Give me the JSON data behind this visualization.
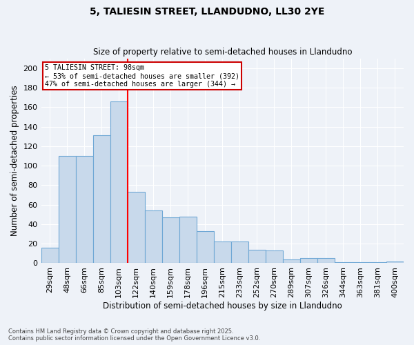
{
  "title_line1": "5, TALIESIN STREET, LLANDUDNO, LL30 2YE",
  "title_line2": "Size of property relative to semi-detached houses in Llandudno",
  "xlabel": "Distribution of semi-detached houses by size in Llandudno",
  "ylabel": "Number of semi-detached properties",
  "categories": [
    "29sqm",
    "48sqm",
    "66sqm",
    "85sqm",
    "103sqm",
    "122sqm",
    "140sqm",
    "159sqm",
    "178sqm",
    "196sqm",
    "215sqm",
    "233sqm",
    "252sqm",
    "270sqm",
    "289sqm",
    "307sqm",
    "326sqm",
    "344sqm",
    "363sqm",
    "381sqm",
    "400sqm"
  ],
  "values": [
    16,
    110,
    110,
    131,
    166,
    73,
    54,
    47,
    48,
    33,
    22,
    22,
    14,
    13,
    4,
    5,
    5,
    1,
    1,
    1,
    2
  ],
  "bar_color": "#c8d9eb",
  "bar_edge_color": "#6fa8d5",
  "vline_x": 4.5,
  "annotation_title": "5 TALIESIN STREET: 98sqm",
  "annotation_line2": "← 53% of semi-detached houses are smaller (392)",
  "annotation_line3": "47% of semi-detached houses are larger (344) →",
  "annotation_box_color": "#cc0000",
  "background_color": "#eef2f8",
  "footnote_line1": "Contains HM Land Registry data © Crown copyright and database right 2025.",
  "footnote_line2": "Contains public sector information licensed under the Open Government Licence v3.0.",
  "ylim": [
    0,
    210
  ],
  "yticks": [
    0,
    20,
    40,
    60,
    80,
    100,
    120,
    140,
    160,
    180,
    200
  ]
}
